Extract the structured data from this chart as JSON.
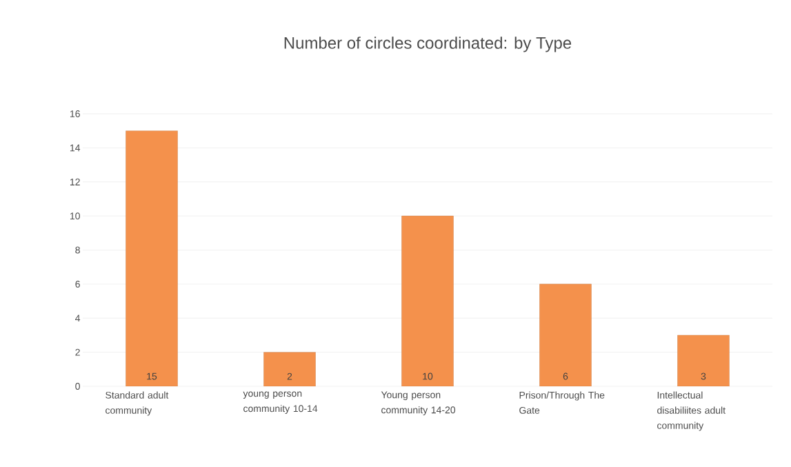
{
  "chart_data": {
    "type": "bar",
    "title": "Number of circles coordinated: by Type",
    "categories": [
      "Standard adult community",
      "young person community 10-14",
      "Young person community 14-20",
      "Prison/Through The Gate",
      "Intellectual disabiliites adult community"
    ],
    "values": [
      15,
      2,
      10,
      6,
      3
    ],
    "color": "#f4914c",
    "ylim": [
      0,
      16
    ],
    "yticks": [
      0,
      2,
      4,
      6,
      8,
      10,
      12,
      14,
      16
    ],
    "grid": "y",
    "data_labels": true
  }
}
